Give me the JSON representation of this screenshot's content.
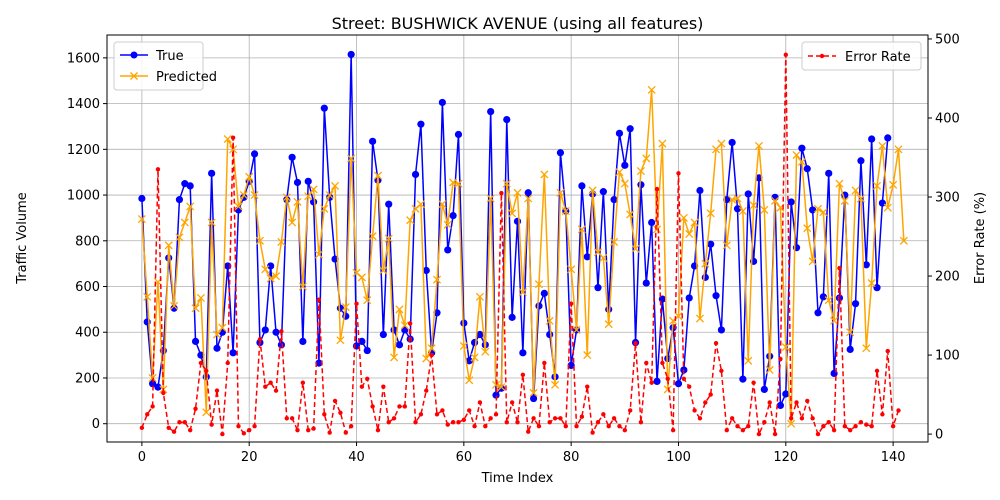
{
  "chart_data": {
    "type": "line",
    "title": "Street: BUSHWICK AVENUE (using all features)",
    "xlabel": "Time Index",
    "ylabel": "Traffic Volume",
    "y2label": "Error Rate (%)",
    "xlim": [
      -6.5,
      146.5
    ],
    "ylim": [
      -80,
      1700
    ],
    "y2lim": [
      -10,
      505
    ],
    "x_ticks": [
      0,
      20,
      40,
      60,
      80,
      100,
      120,
      140
    ],
    "y_ticks": [
      0,
      200,
      400,
      600,
      800,
      1000,
      1200,
      1400,
      1600
    ],
    "y2_ticks": [
      0,
      100,
      200,
      300,
      400,
      500
    ],
    "grid": true,
    "legend_left_position": "upper-left",
    "legend_right_position": "upper-right",
    "series": [
      {
        "name": "True",
        "color": "#0000ff",
        "marker": "circle",
        "linestyle": "solid",
        "values": [
          985,
          445,
          175,
          160,
          320,
          725,
          505,
          980,
          1050,
          1040,
          360,
          300,
          205,
          1095,
          330,
          400,
          690,
          310,
          935,
          990,
          1060,
          1180,
          355,
          410,
          690,
          400,
          345,
          980,
          1165,
          1055,
          360,
          1060,
          970,
          265,
          1380,
          990,
          720,
          505,
          470,
          1615,
          340,
          360,
          320,
          1235,
          1065,
          390,
          960,
          410,
          345,
          410,
          370,
          1090,
          1310,
          670,
          310,
          485,
          1405,
          760,
          910,
          1265,
          440,
          275,
          355,
          390,
          345,
          1365,
          125,
          155,
          1330,
          465,
          885,
          310,
          1010,
          110,
          515,
          570,
          390,
          205,
          1185,
          930,
          255,
          410,
          1040,
          730,
          1005,
          595,
          1015,
          500,
          980,
          1270,
          1130,
          1290,
          355,
          1045,
          615,
          880,
          185,
          545,
          285,
          420,
          175,
          235,
          550,
          690,
          1020,
          640,
          785,
          560,
          410,
          980,
          1230,
          940,
          195,
          1005,
          710,
          1075,
          150,
          295,
          990,
          80,
          130,
          970,
          770,
          1205,
          1115,
          935,
          485,
          555,
          1095,
          220,
          550,
          1000,
          325,
          525,
          1150,
          695,
          1245,
          595,
          965,
          1250
        ]
      },
      {
        "name": "Predicted",
        "color": "#ffa500",
        "marker": "x",
        "linestyle": "solid",
        "values": [
          895,
          555,
          200,
          620,
          150,
          780,
          515,
          815,
          880,
          950,
          505,
          550,
          50,
          880,
          390,
          420,
          1245,
          1200,
          950,
          1000,
          1080,
          1000,
          800,
          675,
          635,
          645,
          795,
          990,
          880,
          970,
          600,
          995,
          1025,
          740,
          940,
          1000,
          1040,
          365,
          510,
          1160,
          660,
          640,
          540,
          820,
          1085,
          670,
          810,
          290,
          500,
          430,
          890,
          940,
          960,
          285,
          330,
          630,
          960,
          870,
          1055,
          1050,
          340,
          190,
          290,
          555,
          315,
          985,
          170,
          160,
          1050,
          920,
          1010,
          575,
          985,
          135,
          610,
          1090,
          450,
          170,
          1010,
          930,
          675,
          410,
          850,
          300,
          1020,
          750,
          725,
          435,
          795,
          1100,
          1050,
          915,
          765,
          1105,
          1160,
          1460,
          850,
          1225,
          150,
          450,
          470,
          900,
          830,
          880,
          460,
          700,
          920,
          1200,
          1225,
          780,
          980,
          985,
          930,
          275,
          955,
          1215,
          935,
          235,
          975,
          945,
          335,
          0,
          1175,
          1145,
          855,
          710,
          940,
          925,
          540,
          450,
          1050,
          975,
          400,
          1020,
          985,
          330,
          615,
          1040,
          1215,
          945,
          1045,
          1200,
          800
        ]
      },
      {
        "name": "Error Rate",
        "color": "#ff0000",
        "marker": "dot",
        "linestyle": "dashed",
        "axis": "right",
        "values": [
          8,
          25,
          35,
          335,
          52,
          8,
          3,
          15,
          15,
          5,
          32,
          90,
          80,
          12,
          55,
          0,
          90,
          375,
          10,
          1,
          5,
          10,
          120,
          60,
          65,
          55,
          130,
          20,
          20,
          5,
          65,
          5,
          7,
          170,
          25,
          2,
          42,
          27,
          2,
          10,
          165,
          60,
          70,
          35,
          5,
          60,
          15,
          20,
          35,
          35,
          140,
          15,
          25,
          55,
          100,
          25,
          30,
          12,
          15,
          15,
          18,
          30,
          10,
          40,
          10,
          20,
          25,
          305,
          15,
          40,
          15,
          75,
          3,
          20,
          10,
          90,
          15,
          20,
          20,
          10,
          165,
          10,
          22,
          60,
          2,
          15,
          25,
          10,
          20,
          10,
          5,
          30,
          115,
          15,
          90,
          65,
          310,
          90,
          70,
          5,
          330,
          70,
          60,
          30,
          20,
          40,
          50,
          115,
          80,
          5,
          20,
          10,
          5,
          10,
          65,
          0,
          15,
          40,
          0,
          95,
          480,
          20,
          40,
          20,
          42,
          20,
          0,
          10,
          15,
          5,
          210,
          10,
          5,
          10,
          15,
          12,
          10,
          80,
          25,
          105,
          10,
          30
        ]
      }
    ]
  }
}
